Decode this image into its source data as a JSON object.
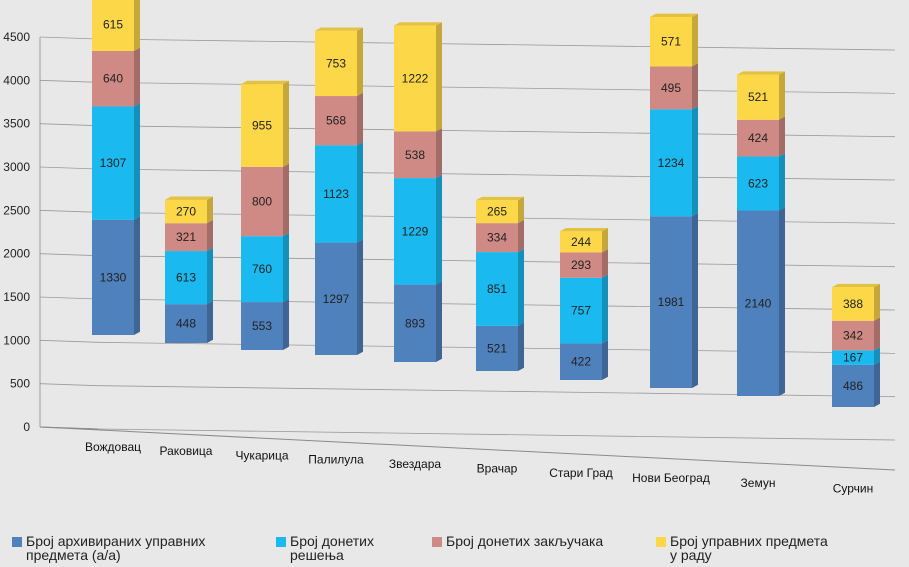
{
  "chart_data": {
    "type": "bar",
    "stacked": true,
    "style": "3d-columns",
    "categories": [
      "Вождовац",
      "Раковица",
      "Чукарица",
      "Палилула",
      "Звездара",
      "Врачар",
      "Стари Град",
      "Нови Београд",
      "Земун",
      "Сурчин"
    ],
    "series": [
      {
        "name": "Број архивираних управних предмета (a/a)",
        "color": "#4f81bd",
        "values": [
          1330,
          448,
          553,
          1297,
          893,
          521,
          422,
          1981,
          2140,
          486
        ]
      },
      {
        "name": "Број донетих решења",
        "color": "#1ab9ef",
        "values": [
          1307,
          613,
          760,
          1123,
          1229,
          851,
          757,
          1234,
          623,
          167
        ]
      },
      {
        "name": "Број донетих закључака",
        "color": "#d08a85",
        "values": [
          640,
          321,
          800,
          568,
          538,
          334,
          293,
          495,
          424,
          342
        ]
      },
      {
        "name": "Број управних предмета у раду",
        "color": "#fcd849",
        "values": [
          615,
          270,
          955,
          753,
          1222,
          265,
          244,
          571,
          521,
          388
        ]
      }
    ],
    "yticks": [
      0,
      500,
      1000,
      1500,
      2000,
      2500,
      3000,
      3500,
      4000,
      4500
    ],
    "ylim": [
      0,
      4500
    ],
    "title": "",
    "xlabel": "",
    "ylabel": "",
    "grid": true,
    "legend_position": "bottom"
  },
  "legend_lines": [
    [
      "Број архивираних управних",
      "предмета (a/a)"
    ],
    [
      "Број донетих",
      "решења"
    ],
    [
      "Број донетих закључака"
    ],
    [
      "Број управних предмета",
      "у раду"
    ]
  ]
}
